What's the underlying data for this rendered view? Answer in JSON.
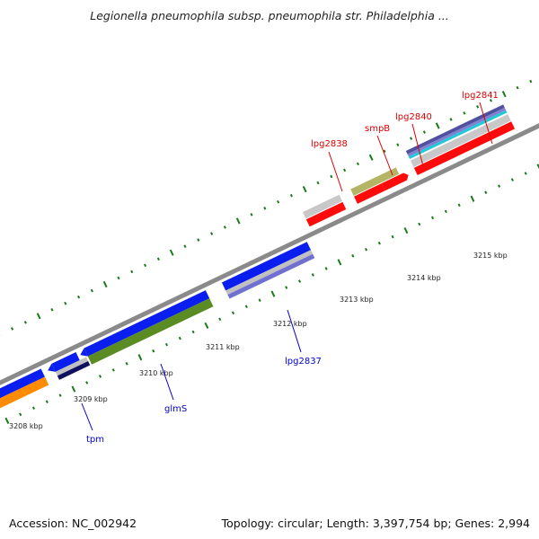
{
  "title": "Legionella pneumophila subsp. pneumophila str. Philadelphia ...",
  "footer": {
    "accession": "Accession: NC_002942",
    "summary": "Topology: circular; Length: 3,397,754 bp; Genes: 2,994"
  },
  "scale": {
    "unit": "kbp",
    "labels": [
      "3208 kbp",
      "3209 kbp",
      "3210 kbp",
      "3211 kbp",
      "3212 kbp",
      "3213 kbp",
      "3214 kbp",
      "3215 kbp"
    ]
  },
  "colors": {
    "forward_gene": "#0a1ef0",
    "reverse_gene": "#ff0a0a",
    "orange_gene": "#ff8c00",
    "olive_gene": "#5a8c23",
    "khaki_gene": "#b4b464",
    "grey_track": "#c0c0c0",
    "navy_track": "#101060",
    "lavender_track": "#7070d0",
    "cyan_track": "#20c8d8",
    "tick": "#1a7a1a",
    "forward_label": "#0000cc",
    "reverse_label": "#dd0000"
  },
  "gene_labels": {
    "top": [
      "lpg2838",
      "smpB",
      "lpg2840",
      "lpg2841"
    ],
    "bottom": [
      "tpm",
      "glmS",
      "lpg2837"
    ]
  }
}
